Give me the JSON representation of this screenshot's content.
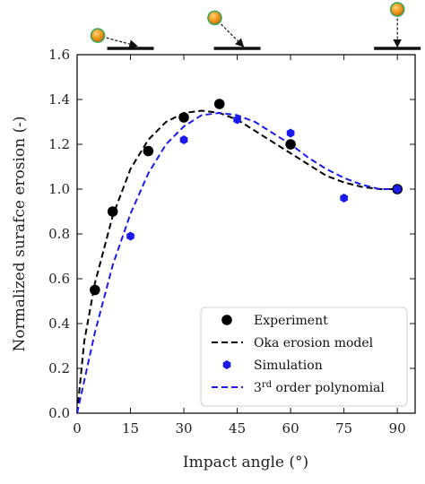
{
  "chart_data": {
    "type": "line",
    "xlabel": "Impact angle (°)",
    "ylabel": "Normalized surafce erosion (-)",
    "xlim": [
      0,
      95
    ],
    "ylim": [
      0,
      1.6
    ],
    "x_ticks": [
      0,
      15,
      30,
      45,
      60,
      75,
      90
    ],
    "y_ticks": [
      0.0,
      0.2,
      0.4,
      0.6,
      0.8,
      1.0,
      1.2,
      1.4,
      1.6
    ],
    "grid": false,
    "legend_position": "bottom-right",
    "series": [
      {
        "name": "Experiment",
        "kind": "scatter",
        "marker": "circle",
        "color": "#000000",
        "x": [
          5,
          10,
          20,
          30,
          40,
          60,
          90
        ],
        "y": [
          0.55,
          0.9,
          1.17,
          1.32,
          1.38,
          1.2,
          1.0
        ]
      },
      {
        "name": "Oka erosion model",
        "kind": "line",
        "dash": true,
        "color": "#000000",
        "x": [
          0,
          2,
          5,
          10,
          15,
          20,
          25,
          30,
          35,
          40,
          45,
          50,
          55,
          60,
          65,
          70,
          75,
          80,
          85,
          90
        ],
        "y": [
          0.0,
          0.32,
          0.58,
          0.88,
          1.09,
          1.22,
          1.3,
          1.34,
          1.35,
          1.34,
          1.31,
          1.26,
          1.21,
          1.16,
          1.11,
          1.06,
          1.03,
          1.01,
          1.0,
          1.0
        ]
      },
      {
        "name": "Simulation",
        "kind": "scatter",
        "marker": "hexagon",
        "color": "#1a1aee",
        "x": [
          15,
          30,
          45,
          60,
          75,
          90
        ],
        "y": [
          0.79,
          1.22,
          1.31,
          1.25,
          0.96,
          1.0
        ]
      },
      {
        "name": "3rd order polynomial",
        "legend_base": "3",
        "legend_sup": "rd",
        "legend_rest": " order polynomial",
        "kind": "line",
        "dash": true,
        "color": "#1a1aee",
        "x": [
          0,
          5,
          10,
          15,
          20,
          25,
          30,
          35,
          40,
          45,
          50,
          55,
          60,
          65,
          70,
          75,
          80,
          85,
          90
        ],
        "y": [
          0.0,
          0.36,
          0.66,
          0.89,
          1.07,
          1.2,
          1.28,
          1.33,
          1.34,
          1.33,
          1.3,
          1.25,
          1.2,
          1.14,
          1.09,
          1.05,
          1.02,
          1.0,
          1.0
        ]
      }
    ]
  },
  "impact_icons": [
    {
      "name": "impact-icon-15",
      "angle_deg": 15
    },
    {
      "name": "impact-icon-45",
      "angle_deg": 45
    },
    {
      "name": "impact-icon-90",
      "angle_deg": 90
    }
  ],
  "colors": {
    "particle_fill": "#e8901a",
    "particle_ring": "#3aa65a",
    "surface": "#111111"
  }
}
